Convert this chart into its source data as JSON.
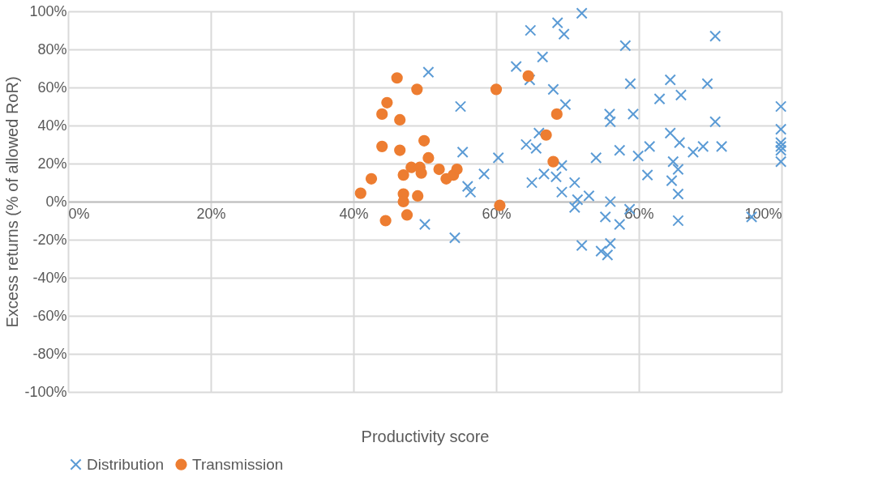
{
  "chart_data": {
    "type": "scatter",
    "xlabel": "Productivity score",
    "ylabel": "Excess returns (% of allowed RoR)",
    "xlim": [
      0,
      100
    ],
    "ylim": [
      -100,
      100
    ],
    "xticks": [
      {
        "value": 0,
        "label": "0%"
      },
      {
        "value": 20,
        "label": "20%"
      },
      {
        "value": 40,
        "label": "40%"
      },
      {
        "value": 60,
        "label": "60%"
      },
      {
        "value": 80,
        "label": "80%"
      },
      {
        "value": 100,
        "label": "100%"
      }
    ],
    "yticks": [
      {
        "value": -100,
        "label": "-100%"
      },
      {
        "value": -80,
        "label": "-80%"
      },
      {
        "value": -60,
        "label": "-60%"
      },
      {
        "value": -40,
        "label": "-40%"
      },
      {
        "value": -20,
        "label": "-20%"
      },
      {
        "value": 0,
        "label": "0%"
      },
      {
        "value": 20,
        "label": "20%"
      },
      {
        "value": 40,
        "label": "40%"
      },
      {
        "value": 60,
        "label": "60%"
      },
      {
        "value": 80,
        "label": "80%"
      },
      {
        "value": 100,
        "label": "100%"
      }
    ],
    "grid": true,
    "legend": "bottom",
    "series": [
      {
        "name": "Distribution",
        "color": "#5b9bd5",
        "marker": "cross",
        "x": [
          50.5,
          50,
          55,
          54.2,
          55.3,
          56,
          56.4,
          58.3,
          60.3,
          62.8,
          64.2,
          64.8,
          65,
          64.7,
          65.6,
          66.5,
          66,
          68,
          68.6,
          69.5,
          69.7,
          66.7,
          68.4,
          69.2,
          69.2,
          71,
          71.4,
          71,
          72,
          73,
          72,
          74,
          74.7,
          75.3,
          75.6,
          76,
          76,
          75.9,
          76,
          77.3,
          78.1,
          78.7,
          77.3,
          78.8,
          79.2,
          79.9,
          81.2,
          81.5,
          82.9,
          84.4,
          84.4,
          84.8,
          84.6,
          85.5,
          85.7,
          85.9,
          85.5,
          85.5,
          87.6,
          89,
          89.6,
          90.7,
          90.7,
          91.6,
          95.8,
          99.9,
          99.9,
          99.9,
          99.9,
          99.9,
          99.9
        ],
        "values": [
          68,
          -12,
          50,
          -19,
          26,
          8,
          5,
          14.5,
          23,
          71,
          30,
          90,
          10,
          64,
          28,
          76,
          36,
          59,
          94,
          88,
          51,
          14.5,
          13,
          19,
          5,
          10,
          1,
          -3,
          99,
          3,
          -23,
          23,
          -26,
          -8,
          -28,
          -22,
          42,
          46,
          0,
          27,
          82,
          -4,
          -12,
          62,
          46,
          24,
          14,
          29,
          54,
          64,
          36,
          21,
          11,
          17,
          31,
          56,
          4,
          -10,
          26,
          29,
          62,
          42,
          87,
          29,
          -8,
          50,
          38,
          31,
          29,
          27,
          21
        ]
      },
      {
        "name": "Transmission",
        "color": "#ed7d31",
        "marker": "circle",
        "x": [
          41,
          42.5,
          44,
          44.7,
          46.1,
          44,
          44.5,
          46.5,
          46.5,
          47,
          47,
          47,
          47.5,
          48.1,
          48.9,
          49.3,
          49.5,
          49,
          49.9,
          50.5,
          52,
          53,
          54,
          54.5,
          60,
          60.5,
          64.5,
          68.5,
          67,
          68
        ],
        "values": [
          4.4,
          12,
          46,
          52,
          65,
          29,
          -10,
          27,
          43,
          14,
          4,
          0,
          -7,
          18,
          59,
          18,
          15,
          3,
          32,
          23,
          17,
          12,
          14,
          17,
          59,
          -2,
          66,
          46,
          35,
          21
        ]
      }
    ]
  }
}
